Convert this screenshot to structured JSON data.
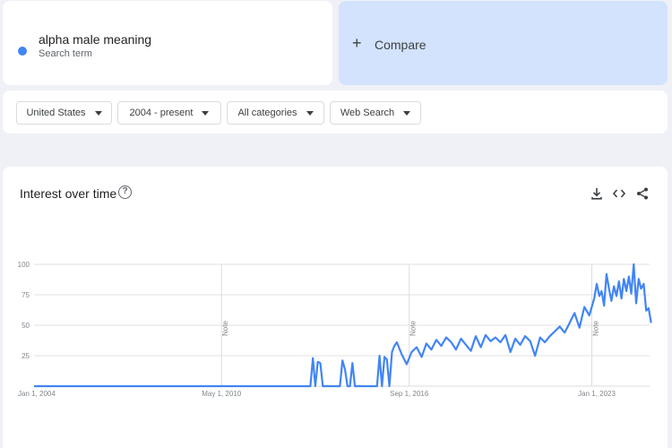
{
  "search": {
    "term": "alpha male meaning",
    "subtitle": "Search term",
    "series_color": "#4285f4"
  },
  "compare": {
    "label": "Compare",
    "icon": "plus-icon"
  },
  "filters": {
    "region": "United States",
    "time": "2004 - present",
    "category": "All categories",
    "property": "Web Search"
  },
  "chart": {
    "title": "Interest over time",
    "help_icon": "help-icon",
    "actions": [
      "download-icon",
      "embed-icon",
      "share-icon"
    ]
  },
  "chart_data": {
    "type": "line",
    "title": "Interest over time",
    "xlabel": "",
    "ylabel": "",
    "ylim": [
      0,
      100
    ],
    "yticks": [
      25,
      50,
      75,
      100
    ],
    "x_range": [
      "2004-01-01",
      "2024-03-01"
    ],
    "xticks": [
      {
        "date": "2004-01-01",
        "label": "Jan 1, 2004"
      },
      {
        "date": "2010-05-01",
        "label": "May 1, 2010"
      },
      {
        "date": "2016-09-01",
        "label": "Sep 1, 2016"
      },
      {
        "date": "2023-01-01",
        "label": "Jan 1, 2023"
      }
    ],
    "notes": [
      {
        "date": "2010-05-01",
        "label": "Note"
      },
      {
        "date": "2016-09-01",
        "label": "Note"
      },
      {
        "date": "2022-11-01",
        "label": "Note"
      }
    ],
    "grid": true,
    "legend": "none",
    "series": [
      {
        "color": "#4285f4",
        "points": [
          [
            "2004-01-01",
            0
          ],
          [
            "2013-05-01",
            0
          ],
          [
            "2013-06-01",
            23
          ],
          [
            "2013-07-01",
            0
          ],
          [
            "2013-08-01",
            20
          ],
          [
            "2013-09-01",
            19
          ],
          [
            "2013-10-01",
            0
          ],
          [
            "2014-05-01",
            0
          ],
          [
            "2014-06-01",
            21
          ],
          [
            "2014-07-01",
            14
          ],
          [
            "2014-08-01",
            0
          ],
          [
            "2014-09-01",
            0
          ],
          [
            "2014-10-01",
            19
          ],
          [
            "2014-11-01",
            0
          ],
          [
            "2015-08-01",
            0
          ],
          [
            "2015-09-01",
            25
          ],
          [
            "2015-10-01",
            0
          ],
          [
            "2015-11-01",
            24
          ],
          [
            "2015-12-01",
            22
          ],
          [
            "2016-01-01",
            0
          ],
          [
            "2016-02-01",
            28
          ],
          [
            "2016-03-01",
            33
          ],
          [
            "2016-04-01",
            36
          ],
          [
            "2016-06-01",
            26
          ],
          [
            "2016-08-01",
            18
          ],
          [
            "2016-10-01",
            28
          ],
          [
            "2016-12-01",
            32
          ],
          [
            "2017-02-01",
            24
          ],
          [
            "2017-04-01",
            35
          ],
          [
            "2017-06-01",
            30
          ],
          [
            "2017-08-01",
            38
          ],
          [
            "2017-10-01",
            33
          ],
          [
            "2017-12-01",
            40
          ],
          [
            "2018-02-01",
            36
          ],
          [
            "2018-04-01",
            30
          ],
          [
            "2018-06-01",
            39
          ],
          [
            "2018-08-01",
            34
          ],
          [
            "2018-10-01",
            29
          ],
          [
            "2018-12-01",
            41
          ],
          [
            "2019-02-01",
            32
          ],
          [
            "2019-04-01",
            42
          ],
          [
            "2019-06-01",
            37
          ],
          [
            "2019-08-01",
            40
          ],
          [
            "2019-10-01",
            36
          ],
          [
            "2019-12-01",
            42
          ],
          [
            "2020-02-01",
            28
          ],
          [
            "2020-04-01",
            39
          ],
          [
            "2020-06-01",
            34
          ],
          [
            "2020-08-01",
            41
          ],
          [
            "2020-10-01",
            37
          ],
          [
            "2020-12-01",
            25
          ],
          [
            "2021-02-01",
            40
          ],
          [
            "2021-04-01",
            36
          ],
          [
            "2021-06-01",
            41
          ],
          [
            "2021-08-01",
            45
          ],
          [
            "2021-10-01",
            49
          ],
          [
            "2021-12-01",
            44
          ],
          [
            "2022-02-01",
            52
          ],
          [
            "2022-04-01",
            60
          ],
          [
            "2022-06-01",
            48
          ],
          [
            "2022-08-01",
            65
          ],
          [
            "2022-10-01",
            58
          ],
          [
            "2022-12-01",
            72
          ],
          [
            "2023-01-01",
            84
          ],
          [
            "2023-02-01",
            74
          ],
          [
            "2023-03-01",
            78
          ],
          [
            "2023-04-01",
            66
          ],
          [
            "2023-05-01",
            92
          ],
          [
            "2023-06-01",
            80
          ],
          [
            "2023-07-01",
            70
          ],
          [
            "2023-08-01",
            82
          ],
          [
            "2023-09-01",
            74
          ],
          [
            "2023-10-01",
            86
          ],
          [
            "2023-11-01",
            72
          ],
          [
            "2023-12-01",
            88
          ],
          [
            "2024-01-01",
            78
          ],
          [
            "2024-02-01",
            90
          ],
          [
            "2024-03-01",
            76
          ],
          [
            "2024-04-01",
            100
          ],
          [
            "2024-05-01",
            68
          ],
          [
            "2024-06-01",
            88
          ],
          [
            "2024-07-01",
            80
          ],
          [
            "2024-08-01",
            84
          ],
          [
            "2024-09-01",
            62
          ],
          [
            "2024-10-01",
            64
          ],
          [
            "2024-11-01",
            52
          ]
        ]
      }
    ]
  }
}
